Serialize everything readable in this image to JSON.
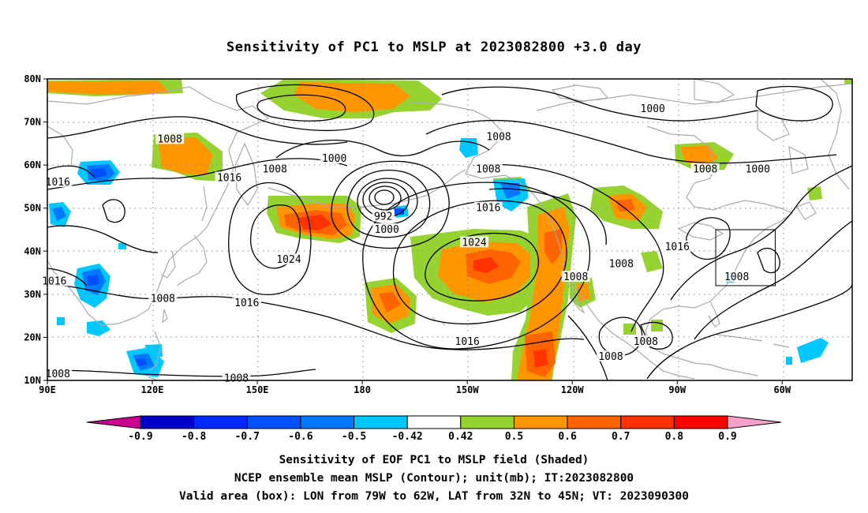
{
  "title": "Sensitivity of PC1 to MSLP at 2023082800 +3.0 day",
  "lat_labels": [
    "80N",
    "70N",
    "60N",
    "50N",
    "40N",
    "30N",
    "20N",
    "10N"
  ],
  "lon_labels": [
    "90E",
    "120E",
    "150E",
    "180",
    "150W",
    "120W",
    "90W",
    "60W"
  ],
  "contour_labels": [
    {
      "text": "1008",
      "lon": 125,
      "lat": 66
    },
    {
      "text": "1000",
      "lon": 172,
      "lat": 61.5
    },
    {
      "text": "1008",
      "lon": 155,
      "lat": 59
    },
    {
      "text": "1016",
      "lon": 142,
      "lat": 57
    },
    {
      "text": "1016",
      "lon": 93,
      "lat": 56
    },
    {
      "text": "1000",
      "lon": -97,
      "lat": 73
    },
    {
      "text": "1008",
      "lon": -141,
      "lat": 66.5
    },
    {
      "text": "1008",
      "lon": -144,
      "lat": 59
    },
    {
      "text": "1008",
      "lon": -82,
      "lat": 59
    },
    {
      "text": "1000",
      "lon": -67,
      "lat": 59
    },
    {
      "text": "992",
      "lon": 186,
      "lat": 48
    },
    {
      "text": "1000",
      "lon": 187,
      "lat": 45
    },
    {
      "text": "1016",
      "lon": -144,
      "lat": 50
    },
    {
      "text": "1024",
      "lon": -148,
      "lat": 42
    },
    {
      "text": "1024",
      "lon": 159,
      "lat": 38
    },
    {
      "text": "1016",
      "lon": -90,
      "lat": 41
    },
    {
      "text": "1008",
      "lon": -106,
      "lat": 37
    },
    {
      "text": "1008",
      "lon": -119,
      "lat": 34
    },
    {
      "text": "1008",
      "lon": -73,
      "lat": 34
    },
    {
      "text": "1016",
      "lon": 92,
      "lat": 33
    },
    {
      "text": "1008",
      "lon": 123,
      "lat": 29
    },
    {
      "text": "1016",
      "lon": 147,
      "lat": 28
    },
    {
      "text": "1016",
      "lon": -150,
      "lat": 19
    },
    {
      "text": "1008",
      "lon": -99,
      "lat": 19
    },
    {
      "text": "1008",
      "lon": -109,
      "lat": 15.5
    },
    {
      "text": "1008",
      "lon": 93,
      "lat": 11.5
    },
    {
      "text": "1008",
      "lon": 144,
      "lat": 10.5
    }
  ],
  "valid_box": {
    "lon_w": -79,
    "lon_e": -62,
    "lat_s": 32,
    "lat_n": 45
  },
  "colorbar": {
    "labels": [
      "-0.9",
      "-0.8",
      "-0.7",
      "-0.6",
      "-0.5",
      "-0.42",
      "0.42",
      "0.5",
      "0.6",
      "0.7",
      "0.8",
      "0.9"
    ],
    "colors": [
      "#0000c8",
      "#0028ff",
      "#0050ff",
      "#0078ff",
      "#00c8ff",
      "#ffffff",
      "#96d232",
      "#ff9600",
      "#ff6400",
      "#ff3200",
      "#ff0000"
    ],
    "low_color": "#c8008c",
    "high_color": "#f5a0c8"
  },
  "captions": [
    "Sensitivity of EOF PC1 to MSLP field (Shaded)",
    "NCEP ensemble mean MSLP (Contour); unit(mb); IT:2023082800",
    "Valid area (box): LON from 79W to 62W, LAT from 32N to 45N; VT: 2023090300"
  ]
}
